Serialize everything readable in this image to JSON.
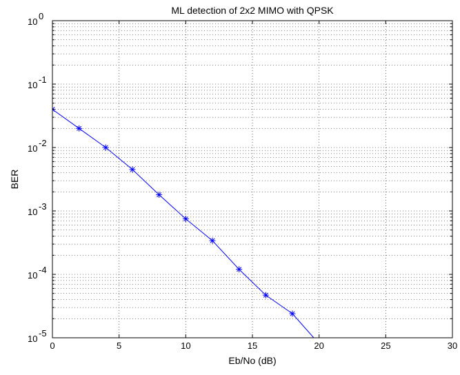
{
  "chart_data": {
    "type": "line",
    "title": "ML detection of 2x2 MIMO with QPSK",
    "xlabel": "Eb/No (dB)",
    "ylabel": "BER",
    "xlim": [
      0,
      30
    ],
    "ylim": [
      1e-05,
      1
    ],
    "y_scale": "log",
    "grid": true,
    "x_ticks": [
      "0",
      "5",
      "10",
      "15",
      "20",
      "25",
      "30"
    ],
    "y_ticks": [
      {
        "base": "10",
        "exp": "0"
      },
      {
        "base": "10",
        "exp": "-1"
      },
      {
        "base": "10",
        "exp": "-2"
      },
      {
        "base": "10",
        "exp": "-3"
      },
      {
        "base": "10",
        "exp": "-4"
      },
      {
        "base": "10",
        "exp": "-5"
      }
    ],
    "series": [
      {
        "marker": "asterisk",
        "color": "#0000ff",
        "x": [
          0,
          2,
          4,
          6,
          8,
          10,
          12,
          14,
          16,
          18,
          19.6
        ],
        "y": [
          0.04,
          0.02,
          0.01,
          0.0045,
          0.0018,
          0.00075,
          0.00034,
          0.00012,
          4.7e-05,
          2.4e-05,
          1e-05
        ],
        "marker_count": 10
      }
    ]
  }
}
